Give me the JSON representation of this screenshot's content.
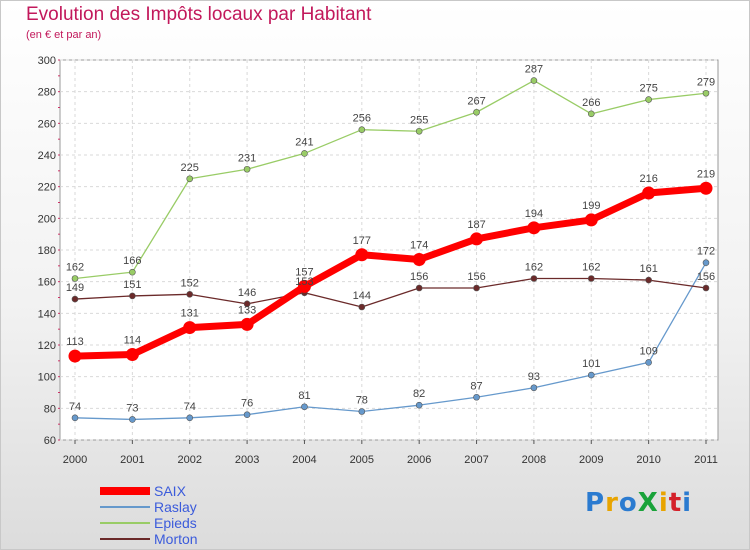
{
  "title": "Evolution des Impôts locaux par Habitant",
  "subtitle": "(en € et par an)",
  "logo": "ProXiti",
  "chart_data": {
    "type": "line",
    "title": "Evolution des Impôts locaux par Habitant",
    "subtitle": "(en € et par an)",
    "xlabel": "",
    "ylabel": "",
    "x": [
      "2000",
      "2001",
      "2002",
      "2003",
      "2004",
      "2005",
      "2006",
      "2007",
      "2008",
      "2009",
      "2010",
      "2011"
    ],
    "ylim": [
      60,
      300
    ],
    "yticks": [
      60,
      80,
      100,
      120,
      140,
      160,
      180,
      200,
      220,
      240,
      260,
      280,
      300
    ],
    "grid": true,
    "legend_position": "bottom-left",
    "series": [
      {
        "name": "SAIX",
        "color": "#ff0000",
        "values": [
          113,
          114,
          131,
          133,
          157,
          177,
          174,
          187,
          194,
          199,
          216,
          219
        ]
      },
      {
        "name": "Raslay",
        "color": "#6699cc",
        "values": [
          74,
          73,
          74,
          76,
          81,
          78,
          82,
          87,
          93,
          101,
          109,
          172
        ]
      },
      {
        "name": "Epieds",
        "color": "#99cc66",
        "values": [
          162,
          166,
          225,
          231,
          241,
          256,
          255,
          267,
          287,
          266,
          275,
          279
        ]
      },
      {
        "name": "Morton",
        "color": "#6b2a2a",
        "values": [
          149,
          151,
          152,
          146,
          153,
          144,
          156,
          156,
          162,
          162,
          161,
          156
        ]
      }
    ]
  }
}
